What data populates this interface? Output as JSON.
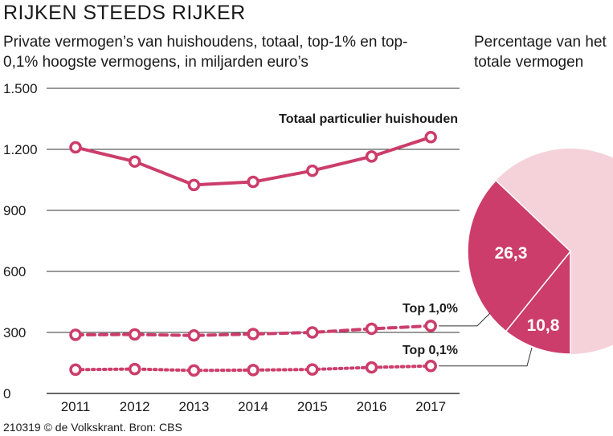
{
  "title": "RIJKEN STEEDS RIJKER",
  "subtitle": "Private vermogen’s van huishoudens, totaal, top-1% en top-0,1% hoogste vermogens, in miljarden euro’s",
  "pie_title": "Percentage van het totale vermogen",
  "footer": "210319 © de Volkskrant. Bron: CBS",
  "colors": {
    "accent": "#cc3d6b",
    "pie_light": "#f5d2d9",
    "grid": "#333333"
  },
  "chart_data": [
    {
      "type": "line",
      "x": [
        2011,
        2012,
        2013,
        2014,
        2015,
        2016,
        2017
      ],
      "x_tick_labels": [
        "2011",
        "2012",
        "2013",
        "2014",
        "2015",
        "2016",
        "2017"
      ],
      "y_ticks": [
        0,
        300,
        600,
        900,
        1200,
        1500
      ],
      "y_tick_labels": [
        "0",
        "300",
        "600",
        "900",
        "1.200",
        "1.500"
      ],
      "ylim": [
        0,
        1500
      ],
      "series": [
        {
          "name": "Totaal particulier huishouden",
          "style": "solid",
          "values": [
            1210,
            1140,
            1025,
            1040,
            1095,
            1165,
            1260
          ]
        },
        {
          "name": "Top 1,0%",
          "style": "dashed",
          "values": [
            288,
            290,
            285,
            292,
            300,
            318,
            332
          ]
        },
        {
          "name": "Top 0,1%",
          "style": "dotted",
          "values": [
            117,
            120,
            113,
            115,
            118,
            128,
            135
          ]
        }
      ]
    },
    {
      "type": "pie",
      "slices": [
        {
          "label": "26,3",
          "value": 26.3
        },
        {
          "label": "10,8",
          "value": 10.8
        },
        {
          "label": "",
          "value": 62.9
        }
      ]
    }
  ]
}
